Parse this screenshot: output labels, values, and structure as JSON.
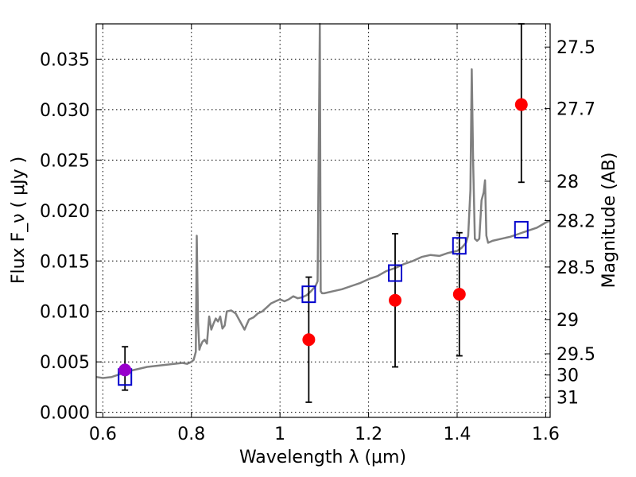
{
  "chart_data": {
    "type": "scatter",
    "xlabel": "Wavelength  λ (μm)",
    "ylabel": "Flux  F_ν  ( μJy )",
    "y2label": "Magnitude (AB)",
    "xlim": [
      0.585,
      1.61
    ],
    "ylim": [
      -0.0005,
      0.0385
    ],
    "grid": true,
    "x_ticks": [
      {
        "value": 0.6,
        "label": "0.6"
      },
      {
        "value": 0.8,
        "label": "0.8"
      },
      {
        "value": 1.0,
        "label": "1"
      },
      {
        "value": 1.2,
        "label": "1.2"
      },
      {
        "value": 1.4,
        "label": "1.4"
      },
      {
        "value": 1.6,
        "label": "1.6"
      }
    ],
    "y_ticks": [
      {
        "value": 0.0,
        "label": "0.000"
      },
      {
        "value": 0.005,
        "label": "0.005"
      },
      {
        "value": 0.01,
        "label": "0.010"
      },
      {
        "value": 0.015,
        "label": "0.015"
      },
      {
        "value": 0.02,
        "label": "0.020"
      },
      {
        "value": 0.025,
        "label": "0.025"
      },
      {
        "value": 0.03,
        "label": "0.030"
      },
      {
        "value": 0.035,
        "label": "0.035"
      }
    ],
    "y2_ticks": [
      {
        "flux": 0.0362,
        "label": "27.5"
      },
      {
        "flux": 0.0301,
        "label": "27.7"
      },
      {
        "flux": 0.0229,
        "label": "28"
      },
      {
        "flux": 0.019,
        "label": "28.2"
      },
      {
        "flux": 0.0144,
        "label": "28.5"
      },
      {
        "flux": 0.0092,
        "label": "29"
      },
      {
        "flux": 0.0058,
        "label": "29.5"
      },
      {
        "flux": 0.0037,
        "label": "30"
      },
      {
        "flux": 0.0015,
        "label": "31"
      }
    ],
    "series": [
      {
        "kind": "spectrum",
        "color": "#808080",
        "x": [
          0.585,
          0.6,
          0.62,
          0.64,
          0.66,
          0.68,
          0.7,
          0.72,
          0.74,
          0.76,
          0.78,
          0.79,
          0.8,
          0.805,
          0.81,
          0.812,
          0.815,
          0.818,
          0.82,
          0.825,
          0.83,
          0.835,
          0.84,
          0.845,
          0.85,
          0.855,
          0.86,
          0.865,
          0.87,
          0.875,
          0.88,
          0.89,
          0.9,
          0.91,
          0.92,
          0.93,
          0.94,
          0.95,
          0.96,
          0.97,
          0.98,
          0.99,
          1.0,
          1.01,
          1.02,
          1.03,
          1.04,
          1.05,
          1.06,
          1.07,
          1.08,
          1.085,
          1.09,
          1.092,
          1.095,
          1.1,
          1.12,
          1.14,
          1.16,
          1.18,
          1.2,
          1.22,
          1.24,
          1.26,
          1.28,
          1.3,
          1.32,
          1.34,
          1.36,
          1.38,
          1.4,
          1.41,
          1.42,
          1.425,
          1.43,
          1.433,
          1.436,
          1.44,
          1.445,
          1.45,
          1.455,
          1.46,
          1.463,
          1.466,
          1.47,
          1.48,
          1.5,
          1.52,
          1.54,
          1.56,
          1.58,
          1.6,
          1.61
        ],
        "y": [
          0.0035,
          0.0034,
          0.0035,
          0.0038,
          0.0041,
          0.0043,
          0.0045,
          0.0046,
          0.0047,
          0.0048,
          0.0049,
          0.0048,
          0.005,
          0.0052,
          0.006,
          0.0175,
          0.009,
          0.0062,
          0.0065,
          0.007,
          0.0072,
          0.0068,
          0.0095,
          0.0082,
          0.0088,
          0.0093,
          0.009,
          0.0095,
          0.0083,
          0.0086,
          0.01,
          0.0101,
          0.0098,
          0.009,
          0.0082,
          0.0092,
          0.0094,
          0.0098,
          0.01,
          0.0104,
          0.0108,
          0.011,
          0.0112,
          0.011,
          0.0112,
          0.0115,
          0.0113,
          0.0114,
          0.0116,
          0.012,
          0.0125,
          0.013,
          0.0385,
          0.012,
          0.0118,
          0.0118,
          0.012,
          0.0122,
          0.0125,
          0.0128,
          0.0132,
          0.0135,
          0.014,
          0.0143,
          0.0147,
          0.015,
          0.0154,
          0.0156,
          0.0155,
          0.0158,
          0.016,
          0.0163,
          0.0168,
          0.0175,
          0.022,
          0.034,
          0.025,
          0.0172,
          0.017,
          0.0172,
          0.021,
          0.0218,
          0.023,
          0.0175,
          0.0168,
          0.017,
          0.0172,
          0.0174,
          0.0177,
          0.018,
          0.0183,
          0.0188,
          0.019
        ]
      },
      {
        "kind": "model_boxes",
        "color": "#0000cc",
        "x": [
          0.65,
          1.065,
          1.26,
          1.405,
          1.545
        ],
        "y": [
          0.0035,
          0.0117,
          0.0138,
          0.0165,
          0.0181
        ]
      },
      {
        "kind": "observed",
        "color": "#ff0000",
        "x": [
          1.065,
          1.26,
          1.405,
          1.545
        ],
        "y": [
          0.0072,
          0.0111,
          0.0117,
          0.0305
        ],
        "err_low": [
          0.001,
          0.0045,
          0.0056,
          0.0228
        ],
        "err_high": [
          0.0134,
          0.0177,
          0.0178,
          0.0385
        ]
      },
      {
        "kind": "observed_optical",
        "color": "#9900cc",
        "x": [
          0.65
        ],
        "y": [
          0.0042
        ],
        "err_low": [
          0.0022
        ],
        "err_high": [
          0.0065
        ]
      }
    ]
  }
}
